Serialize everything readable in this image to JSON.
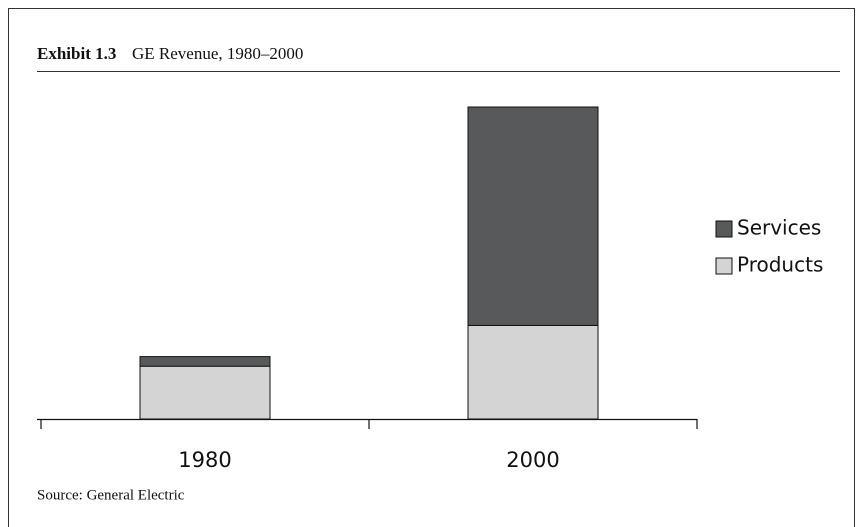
{
  "chart_data": {
    "type": "stacked_bar",
    "label": "Exhibit 1.3",
    "title": "GE Revenue, 1980–2000",
    "source": "Source: General Electric",
    "categories": [
      "1980",
      "2000"
    ],
    "series": [
      {
        "name": "Products",
        "color": "#d4d4d4",
        "values": [
          22,
          39
        ]
      },
      {
        "name": "Services",
        "color": "#58595b",
        "values": [
          4,
          91
        ]
      }
    ],
    "ylim": [
      0,
      130
    ],
    "legend": "right"
  }
}
